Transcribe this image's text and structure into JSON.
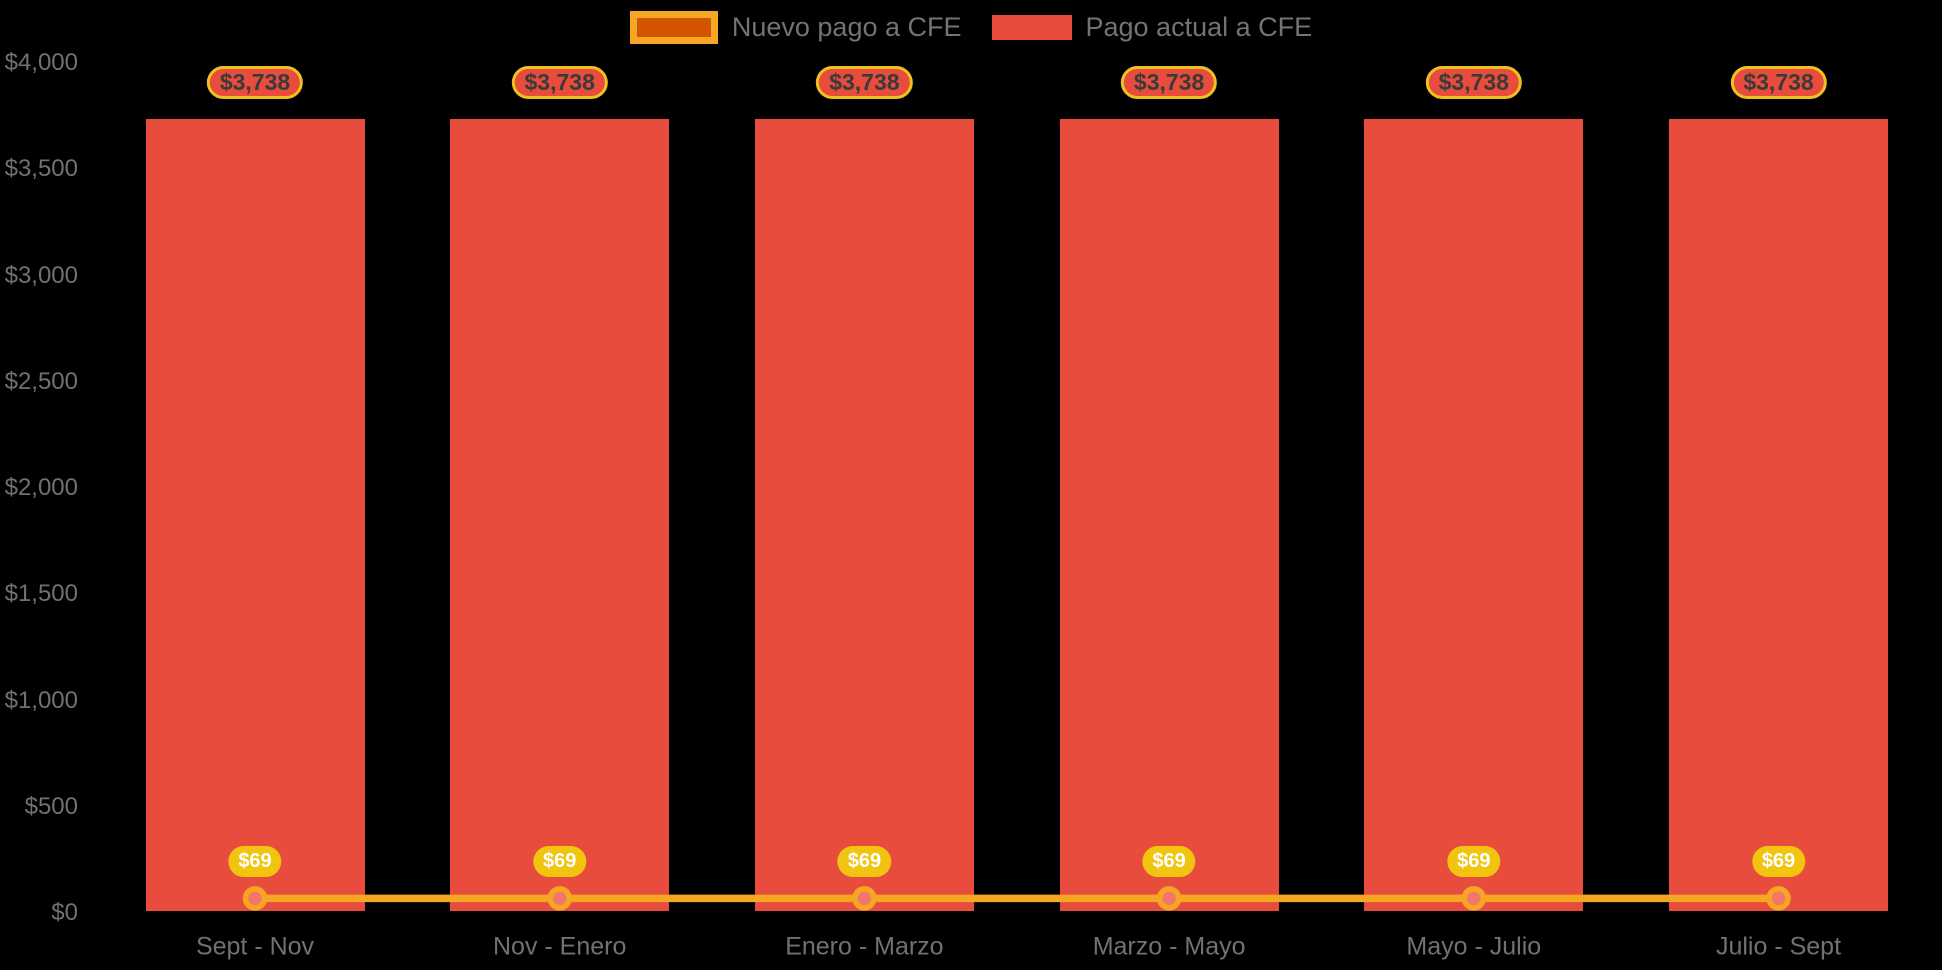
{
  "chart_data": {
    "type": "bar",
    "title": "",
    "categories": [
      "Sept - Nov",
      "Nov - Enero",
      "Enero - Marzo",
      "Marzo - Mayo",
      "Mayo - Julio",
      "Julio - Sept"
    ],
    "series": [
      {
        "name": "Pago actual a CFE",
        "type": "bar",
        "color": "#E74C3C",
        "values": [
          3738,
          3738,
          3738,
          3738,
          3738,
          3738
        ],
        "data_labels": [
          "$3,738",
          "$3,738",
          "$3,738",
          "$3,738",
          "$3,738",
          "$3,738"
        ],
        "data_label_style": {
          "fill": "#E74C3C",
          "border": "#EFC11E",
          "text": "#3A3A3A"
        }
      },
      {
        "name": "Nuevo pago a CFE",
        "type": "line",
        "color": "#F5A623",
        "marker_fill": "#F4766B",
        "marker_stroke": "#F5A623",
        "values": [
          69,
          69,
          69,
          69,
          69,
          69
        ],
        "data_labels": [
          "$69",
          "$69",
          "$69",
          "$69",
          "$69",
          "$69"
        ],
        "data_label_style": {
          "fill": "#F1C40F",
          "text": "#FFFFFF"
        }
      }
    ],
    "y_axis": {
      "range": [
        0,
        4000
      ],
      "ticks": [
        {
          "label": "$4,000",
          "value": 4000
        },
        {
          "label": "$3,500",
          "value": 3500
        },
        {
          "label": "$3,000",
          "value": 3000
        },
        {
          "label": "$2,500",
          "value": 2500
        },
        {
          "label": "$2,000",
          "value": 2000
        },
        {
          "label": "$1,500",
          "value": 1500
        },
        {
          "label": "$1,000",
          "value": 1000
        },
        {
          "label": "$500",
          "value": 500
        },
        {
          "label": "$0",
          "value": 0
        }
      ]
    },
    "legend": {
      "position": "top",
      "items": [
        {
          "label": "Nuevo pago a CFE",
          "swatch": "line",
          "swatch_fill": "#D35400",
          "swatch_border": "#F5A623"
        },
        {
          "label": "Pago actual a CFE",
          "swatch": "bar",
          "swatch_fill": "#E74C3C"
        }
      ]
    },
    "grid": false,
    "background": "#000000"
  }
}
